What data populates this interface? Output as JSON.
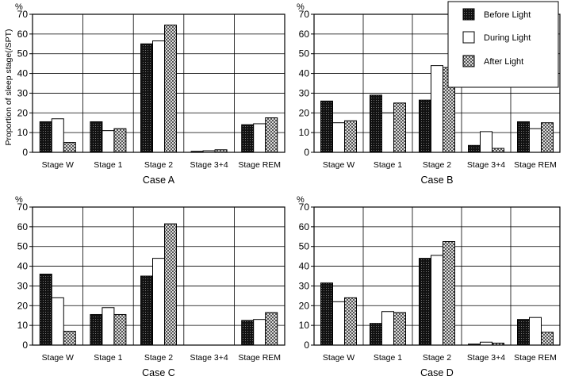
{
  "figure": {
    "ylabel": "Proportion of sleep stage(/SPT)",
    "unit": "%"
  },
  "legend": {
    "entries": [
      {
        "name": "Before Light",
        "pattern": "dark"
      },
      {
        "name": "During Light",
        "pattern": "white"
      },
      {
        "name": "After Light",
        "pattern": "cross"
      }
    ]
  },
  "chart_data": [
    {
      "type": "bar",
      "title": "Case A",
      "categories": [
        "Stage W",
        "Stage 1",
        "Stage 2",
        "Stage 3+4",
        "Stage REM"
      ],
      "ylim": [
        0,
        70
      ],
      "yticks": [
        0,
        10,
        20,
        30,
        40,
        50,
        60,
        70
      ],
      "series": [
        {
          "name": "Before Light",
          "values": [
            15.5,
            15.5,
            55,
            0.5,
            14
          ]
        },
        {
          "name": "During Light",
          "values": [
            17,
            11,
            56.5,
            0.8,
            14.5
          ]
        },
        {
          "name": "After Light",
          "values": [
            5,
            12,
            64.5,
            1.3,
            17.5
          ]
        }
      ]
    },
    {
      "type": "bar",
      "title": "Case B",
      "categories": [
        "Stage W",
        "Stage 1",
        "Stage 2",
        "Stage 3+4",
        "Stage REM"
      ],
      "ylim": [
        0,
        70
      ],
      "yticks": [
        0,
        10,
        20,
        30,
        40,
        50,
        60,
        70
      ],
      "series": [
        {
          "name": "Before Light",
          "values": [
            26,
            29,
            26.5,
            3.5,
            15.5
          ]
        },
        {
          "name": "During Light",
          "values": [
            15,
            20,
            44,
            10.5,
            12
          ]
        },
        {
          "name": "After Light",
          "values": [
            16,
            25,
            43,
            2,
            15
          ]
        }
      ]
    },
    {
      "type": "bar",
      "title": "Case C",
      "categories": [
        "Stage W",
        "Stage 1",
        "Stage 2",
        "Stage 3+4",
        "Stage REM"
      ],
      "ylim": [
        0,
        70
      ],
      "yticks": [
        0,
        10,
        20,
        30,
        40,
        50,
        60,
        70
      ],
      "series": [
        {
          "name": "Before Light",
          "values": [
            36,
            15.5,
            35,
            0,
            12.5
          ]
        },
        {
          "name": "During Light",
          "values": [
            24,
            19,
            44,
            0,
            13
          ]
        },
        {
          "name": "After Light",
          "values": [
            7,
            15.5,
            61.5,
            0,
            16.5
          ]
        }
      ]
    },
    {
      "type": "bar",
      "title": "Case D",
      "categories": [
        "Stage W",
        "Stage 1",
        "Stage 2",
        "Stage 3+4",
        "Stage REM"
      ],
      "ylim": [
        0,
        70
      ],
      "yticks": [
        0,
        10,
        20,
        30,
        40,
        50,
        60,
        70
      ],
      "series": [
        {
          "name": "Before Light",
          "values": [
            31.5,
            11,
            44,
            0.5,
            13
          ]
        },
        {
          "name": "During Light",
          "values": [
            22,
            17,
            45.5,
            1.5,
            14
          ]
        },
        {
          "name": "After Light",
          "values": [
            24,
            16.5,
            52.5,
            1,
            6.5
          ]
        }
      ]
    }
  ]
}
